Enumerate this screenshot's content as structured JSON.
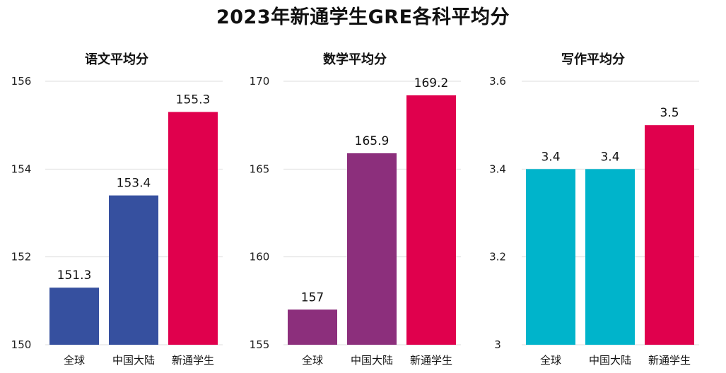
{
  "title": "2023年新通学生GRE各科平均分",
  "chart_data": [
    {
      "type": "bar",
      "title": "语文平均分",
      "categories": [
        "全球",
        "中国大陆",
        "新通学生"
      ],
      "values": [
        151.3,
        153.4,
        155.3
      ],
      "value_labels": [
        "151.3",
        "153.4",
        "155.3"
      ],
      "colors": [
        "#36509f",
        "#36509f",
        "#e0004d"
      ],
      "ylim": [
        150,
        156
      ],
      "yticks": [
        "150",
        "152",
        "154",
        "156"
      ],
      "grid": true
    },
    {
      "type": "bar",
      "title": "数学平均分",
      "categories": [
        "全球",
        "中国大陆",
        "新通学生"
      ],
      "values": [
        157,
        165.9,
        169.2
      ],
      "value_labels": [
        "157",
        "165.9",
        "169.2"
      ],
      "colors": [
        "#8c2f7c",
        "#8c2f7c",
        "#e0004d"
      ],
      "ylim": [
        155,
        170
      ],
      "yticks": [
        "155",
        "160",
        "165",
        "170"
      ],
      "grid": true
    },
    {
      "type": "bar",
      "title": "写作平均分",
      "categories": [
        "全球",
        "中国大陆",
        "新通学生"
      ],
      "values": [
        3.4,
        3.4,
        3.5
      ],
      "value_labels": [
        "3.4",
        "3.4",
        "3.5"
      ],
      "colors": [
        "#00b4cb",
        "#00b4cb",
        "#e0004d"
      ],
      "ylim": [
        3,
        3.6
      ],
      "yticks": [
        "3",
        "3.2",
        "3.4",
        "3.6"
      ],
      "grid": true
    }
  ]
}
